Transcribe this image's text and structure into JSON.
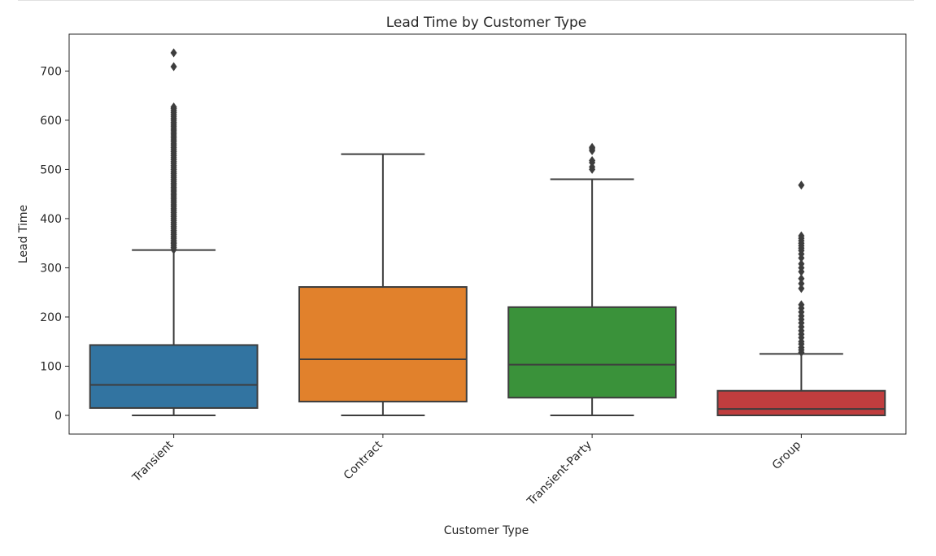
{
  "chart_data": {
    "type": "boxplot",
    "title": "Lead Time by Customer Type",
    "xlabel": "Customer Type",
    "ylabel": "Lead Time",
    "ylim": [
      -38,
      775
    ],
    "yticks": [
      0,
      100,
      200,
      300,
      400,
      500,
      600,
      700
    ],
    "grid": false,
    "categories": [
      "Transient",
      "Contract",
      "Transient-Party",
      "Group"
    ],
    "boxes": [
      {
        "category": "Transient",
        "color": "#3274a1",
        "whisker_low": 0,
        "q1": 15,
        "median": 62,
        "q3": 143,
        "whisker_high": 336,
        "outliers": [
          337,
          341,
          345,
          349,
          352,
          356,
          360,
          364,
          368,
          372,
          376,
          380,
          384,
          388,
          392,
          396,
          400,
          404,
          408,
          412,
          416,
          420,
          424,
          428,
          432,
          436,
          440,
          444,
          448,
          452,
          456,
          460,
          464,
          468,
          472,
          476,
          480,
          484,
          488,
          492,
          496,
          500,
          504,
          508,
          512,
          516,
          520,
          524,
          528,
          532,
          536,
          540,
          544,
          548,
          552,
          556,
          560,
          564,
          568,
          572,
          576,
          580,
          584,
          588,
          592,
          596,
          600,
          604,
          608,
          612,
          616,
          620,
          624,
          627,
          709,
          737
        ]
      },
      {
        "category": "Contract",
        "color": "#e1812c",
        "whisker_low": 0,
        "q1": 28,
        "median": 114,
        "q3": 261,
        "whisker_high": 531,
        "outliers": []
      },
      {
        "category": "Transient-Party",
        "color": "#3a923a",
        "whisker_low": 0,
        "q1": 36,
        "median": 103,
        "q3": 220,
        "whisker_high": 480,
        "outliers": [
          500,
          505,
          514,
          518,
          538,
          542,
          545
        ]
      },
      {
        "category": "Group",
        "color": "#c03d3e",
        "whisker_low": 0,
        "q1": 0,
        "median": 13,
        "q3": 50,
        "whisker_high": 125,
        "outliers": [
          128,
          133,
          138,
          145,
          150,
          158,
          165,
          172,
          180,
          188,
          195,
          202,
          210,
          218,
          225,
          258,
          268,
          278,
          292,
          300,
          308,
          320,
          328,
          335,
          340,
          345,
          350,
          355,
          360,
          365,
          468
        ]
      }
    ]
  }
}
